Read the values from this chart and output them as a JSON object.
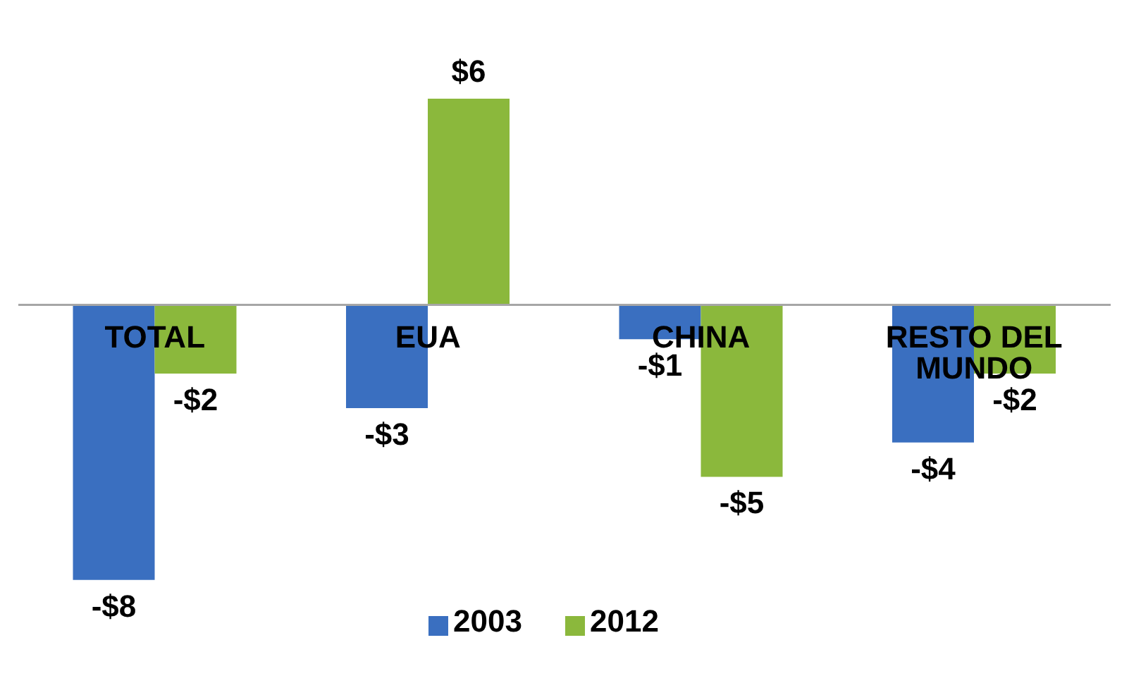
{
  "chart_data": {
    "type": "bar",
    "categories": [
      "TOTAL",
      "EUA",
      "CHINA",
      "RESTO DEL MUNDO"
    ],
    "series": [
      {
        "name": "2003",
        "color": "#3a6fc0",
        "values": [
          -8,
          -3,
          -1,
          -4
        ],
        "value_labels": [
          "-$8",
          "-$3",
          "-$1",
          "-$4"
        ]
      },
      {
        "name": "2012",
        "color": "#8bb83c",
        "values": [
          -2,
          6,
          -5,
          -2
        ],
        "value_labels": [
          "-$2",
          "$6",
          "-$5",
          "-$2"
        ]
      }
    ],
    "legend": "bottom",
    "grid": false
  }
}
